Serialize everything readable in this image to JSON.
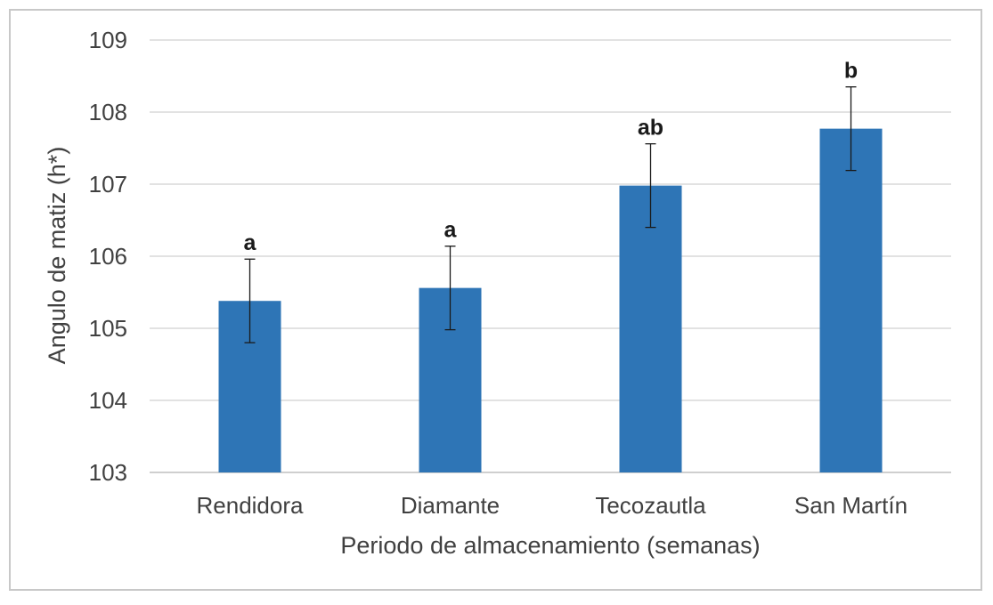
{
  "chart_data": {
    "type": "bar",
    "title": "",
    "xlabel": "Periodo de almacenamiento (semanas)",
    "ylabel": "Angulo de matiz (h*)",
    "ylim": [
      103,
      109
    ],
    "yticks": [
      103,
      104,
      105,
      106,
      107,
      108,
      109
    ],
    "grid": true,
    "legend": "none",
    "categories": [
      "Rendidora",
      "Diamante",
      "Tecozautla",
      "San Martín"
    ],
    "series": [
      {
        "values": [
          105.38,
          105.56,
          106.98,
          107.77
        ],
        "error": [
          0.58,
          0.58,
          0.58,
          0.58
        ],
        "significance": [
          "a",
          "a",
          "ab",
          "b"
        ],
        "color": "#2e75b6"
      }
    ],
    "error_bar_color": "#1a1a1a",
    "gridline_color": "#d9d9d9"
  }
}
